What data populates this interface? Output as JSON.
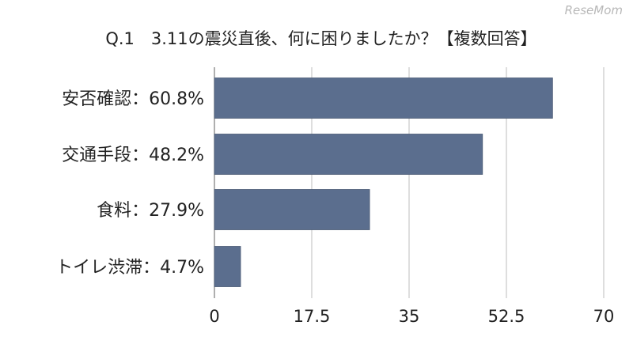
{
  "watermark": "ReseMom",
  "chart_data": {
    "type": "bar",
    "orientation": "horizontal",
    "title": "Q.1　3.11の震災直後、何に困りましたか？【複数回答】",
    "categories": [
      "安否確認",
      "交通手段",
      "食料",
      "トイレ渋滞"
    ],
    "category_labels": [
      "安否確認：60.8%",
      "交通手段：48.2%",
      "食料：27.9%",
      "トイレ渋滞：4.7%"
    ],
    "values": [
      60.8,
      48.2,
      27.9,
      4.7
    ],
    "xlim": [
      0,
      70
    ],
    "xticks": [
      0,
      17.5,
      35,
      52.5,
      70
    ],
    "xtick_labels": [
      "0",
      "17.5",
      "35",
      "52.5",
      "70"
    ],
    "grid": true,
    "bar_color": "#5b6e8e",
    "xlabel": "",
    "ylabel": ""
  }
}
